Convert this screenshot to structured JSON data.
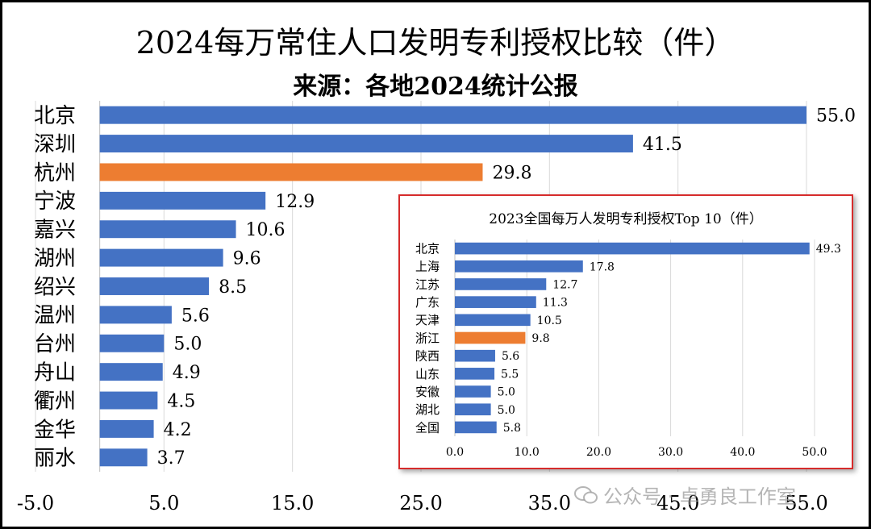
{
  "title": "2024每万常住人口发明专利授权比较（件）",
  "subtitle": "来源：各地2024统计公报",
  "chart_data": [
    {
      "type": "bar",
      "orientation": "horizontal",
      "title": "2024每万常住人口发明专利授权比较（件）",
      "subtitle": "来源：各地2024统计公报",
      "categories": [
        "北京",
        "深圳",
        "杭州",
        "宁波",
        "嘉兴",
        "湖州",
        "绍兴",
        "温州",
        "台州",
        "舟山",
        "衢州",
        "金华",
        "丽水"
      ],
      "values": [
        55.0,
        41.5,
        29.8,
        12.9,
        10.6,
        9.6,
        8.5,
        5.6,
        5.0,
        4.9,
        4.5,
        4.2,
        3.7
      ],
      "value_labels": [
        "55.0",
        "41.5",
        "29.8",
        "12.9",
        "10.6",
        "9.6",
        "8.5",
        "5.6",
        "5.0",
        "4.9",
        "4.5",
        "4.2",
        "3.7"
      ],
      "highlight": "杭州",
      "xlim": [
        -5.0,
        55.0
      ],
      "x_ticks": [
        "-5.0",
        "5.0",
        "15.0",
        "25.0",
        "35.0",
        "45.0",
        "55.0"
      ],
      "grid": true
    },
    {
      "type": "bar",
      "orientation": "horizontal",
      "title": "2023全国每万人发明专利授权Top 10（件）",
      "categories": [
        "北京",
        "上海",
        "江苏",
        "广东",
        "天津",
        "浙江",
        "陕西",
        "山东",
        "安徽",
        "湖北",
        "全国"
      ],
      "values": [
        49.3,
        17.8,
        12.7,
        11.3,
        10.5,
        9.8,
        5.6,
        5.5,
        5.0,
        5.0,
        5.8
      ],
      "value_labels": [
        "49.3",
        "17.8",
        "12.7",
        "11.3",
        "10.5",
        "9.8",
        "5.6",
        "5.5",
        "5.0",
        "5.0",
        "5.8"
      ],
      "highlight": "浙江",
      "xlim": [
        0,
        50
      ],
      "x_ticks": [
        "0.0",
        "10.0",
        "20.0",
        "30.0",
        "40.0",
        "50.0"
      ],
      "grid": true
    }
  ],
  "colors": {
    "bar": "#4472c4",
    "highlight": "#ed7d31",
    "grid": "#d9d9d9",
    "inset_border": "#d62b2b"
  },
  "watermark": "公众号 · 卓勇良工作室"
}
